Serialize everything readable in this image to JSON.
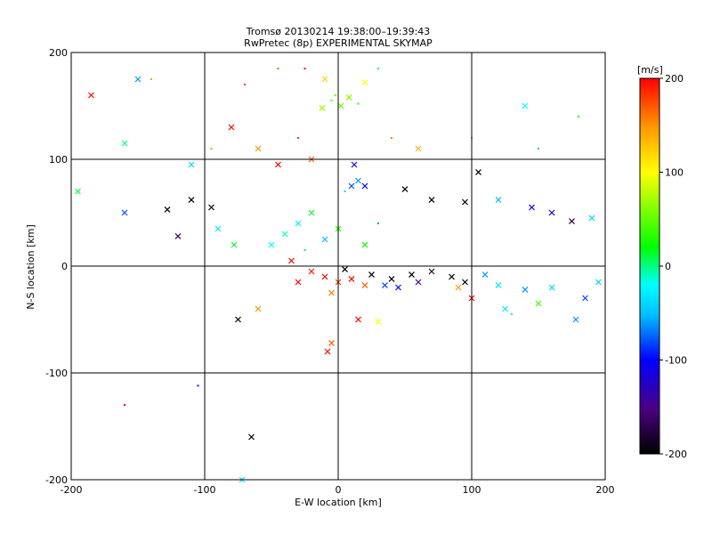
{
  "chart_data": {
    "type": "scatter",
    "title": "Tromsø 20130214 19:38:00–19:39:43",
    "subtitle": "RwPretec (8p) EXPERIMENTAL SKYMAP",
    "xlabel": "E-W location [km]",
    "ylabel": "N-S location [km]",
    "xlim": [
      -200,
      200
    ],
    "ylim": [
      -200,
      200
    ],
    "x_ticks": [
      -200,
      -100,
      0,
      100,
      200
    ],
    "y_ticks": [
      -200,
      -100,
      0,
      100,
      200
    ],
    "x_tick_labels": [
      "-200",
      "-100",
      "0",
      "100",
      "200"
    ],
    "y_tick_labels": [
      "-200",
      "-100",
      "0",
      "100",
      "200"
    ],
    "grid": true,
    "colorbar": {
      "label": "[m/s]",
      "min": -200,
      "max": 200,
      "ticks": [
        200,
        100,
        0,
        -100,
        -200
      ],
      "tick_labels": [
        "200",
        "100",
        "0",
        "-100",
        "-200"
      ],
      "colormap": [
        "#000000",
        "#4b0082",
        "#0000ff",
        "#00bfff",
        "#00ffff",
        "#00ff00",
        "#ffff00",
        "#ff9900",
        "#ff0000"
      ]
    },
    "markers": [
      "small dot",
      "cross"
    ],
    "points": [
      {
        "x": 2,
        "y": 150,
        "v": 50,
        "m": "x"
      },
      {
        "x": -5,
        "y": 155,
        "v": 40,
        "m": "."
      },
      {
        "x": 8,
        "y": 158,
        "v": 60,
        "m": "x"
      },
      {
        "x": -12,
        "y": 148,
        "v": 70,
        "m": "x"
      },
      {
        "x": 15,
        "y": 152,
        "v": 30,
        "m": "."
      },
      {
        "x": -2,
        "y": 160,
        "v": 55,
        "m": "."
      },
      {
        "x": -60,
        "y": 110,
        "v": 150,
        "m": "x"
      },
      {
        "x": -30,
        "y": 120,
        "v": 180,
        "m": "."
      },
      {
        "x": -45,
        "y": 95,
        "v": 200,
        "m": "x"
      },
      {
        "x": -20,
        "y": 100,
        "v": 170,
        "m": "x"
      },
      {
        "x": 40,
        "y": 120,
        "v": 160,
        "m": "."
      },
      {
        "x": 60,
        "y": 110,
        "v": 140,
        "m": "x"
      },
      {
        "x": 100,
        "y": 120,
        "v": 40,
        "m": "."
      },
      {
        "x": 140,
        "y": 150,
        "v": -20,
        "m": "x"
      },
      {
        "x": 150,
        "y": 110,
        "v": -50,
        "m": "."
      },
      {
        "x": 180,
        "y": 140,
        "v": 20,
        "m": "."
      },
      {
        "x": -185,
        "y": 160,
        "v": 200,
        "m": "x"
      },
      {
        "x": -195,
        "y": 70,
        "v": 10,
        "m": "x"
      },
      {
        "x": -160,
        "y": 115,
        "v": 0,
        "m": "x"
      },
      {
        "x": -150,
        "y": 175,
        "v": -60,
        "m": "x"
      },
      {
        "x": -160,
        "y": 50,
        "v": -80,
        "m": "x"
      },
      {
        "x": -128,
        "y": 53,
        "v": -200,
        "m": "x"
      },
      {
        "x": -110,
        "y": 62,
        "v": -200,
        "m": "x"
      },
      {
        "x": -95,
        "y": 55,
        "v": -200,
        "m": "x"
      },
      {
        "x": -120,
        "y": 28,
        "v": -160,
        "m": "x"
      },
      {
        "x": -90,
        "y": 35,
        "v": -30,
        "m": "x"
      },
      {
        "x": -78,
        "y": 20,
        "v": 10,
        "m": "x"
      },
      {
        "x": 10,
        "y": 75,
        "v": -80,
        "m": "x"
      },
      {
        "x": 15,
        "y": 80,
        "v": -60,
        "m": "x"
      },
      {
        "x": 5,
        "y": 70,
        "v": -40,
        "m": "."
      },
      {
        "x": 20,
        "y": 75,
        "v": -100,
        "m": "x"
      },
      {
        "x": 12,
        "y": 95,
        "v": -120,
        "m": "x"
      },
      {
        "x": 50,
        "y": 72,
        "v": -200,
        "m": "x"
      },
      {
        "x": 70,
        "y": 62,
        "v": -200,
        "m": "x"
      },
      {
        "x": 95,
        "y": 60,
        "v": -200,
        "m": "x"
      },
      {
        "x": 105,
        "y": 88,
        "v": -200,
        "m": "x"
      },
      {
        "x": 120,
        "y": 62,
        "v": -50,
        "m": "x"
      },
      {
        "x": 145,
        "y": 55,
        "v": -100,
        "m": "x"
      },
      {
        "x": 160,
        "y": 50,
        "v": -120,
        "m": "x"
      },
      {
        "x": 175,
        "y": 42,
        "v": -170,
        "m": "x"
      },
      {
        "x": 190,
        "y": 45,
        "v": -40,
        "m": "x"
      },
      {
        "x": -40,
        "y": 30,
        "v": -10,
        "m": "x"
      },
      {
        "x": -30,
        "y": 40,
        "v": -30,
        "m": "x"
      },
      {
        "x": -20,
        "y": 50,
        "v": 10,
        "m": "x"
      },
      {
        "x": -10,
        "y": 25,
        "v": -50,
        "m": "x"
      },
      {
        "x": 0,
        "y": 35,
        "v": 30,
        "m": "x"
      },
      {
        "x": -50,
        "y": 20,
        "v": -20,
        "m": "x"
      },
      {
        "x": 20,
        "y": 20,
        "v": 20,
        "m": "x"
      },
      {
        "x": 30,
        "y": 40,
        "v": -60,
        "m": "."
      },
      {
        "x": -25,
        "y": 15,
        "v": -40,
        "m": "."
      },
      {
        "x": -35,
        "y": 5,
        "v": 200,
        "m": "x"
      },
      {
        "x": -20,
        "y": -5,
        "v": 190,
        "m": "x"
      },
      {
        "x": -10,
        "y": -10,
        "v": 200,
        "m": "x"
      },
      {
        "x": 0,
        "y": -15,
        "v": 180,
        "m": "x"
      },
      {
        "x": 10,
        "y": -12,
        "v": 200,
        "m": "x"
      },
      {
        "x": 20,
        "y": -18,
        "v": 170,
        "m": "x"
      },
      {
        "x": -5,
        "y": -25,
        "v": 160,
        "m": "x"
      },
      {
        "x": -30,
        "y": -15,
        "v": 200,
        "m": "x"
      },
      {
        "x": 5,
        "y": -3,
        "v": -200,
        "m": "x"
      },
      {
        "x": 25,
        "y": -8,
        "v": -200,
        "m": "x"
      },
      {
        "x": 40,
        "y": -12,
        "v": -200,
        "m": "x"
      },
      {
        "x": 55,
        "y": -8,
        "v": -200,
        "m": "x"
      },
      {
        "x": 70,
        "y": -5,
        "v": -180,
        "m": "x"
      },
      {
        "x": 85,
        "y": -10,
        "v": -200,
        "m": "x"
      },
      {
        "x": 45,
        "y": -20,
        "v": -100,
        "m": "x"
      },
      {
        "x": 35,
        "y": -18,
        "v": -80,
        "m": "x"
      },
      {
        "x": 60,
        "y": -15,
        "v": -150,
        "m": "x"
      },
      {
        "x": 95,
        "y": -15,
        "v": -200,
        "m": "x"
      },
      {
        "x": 110,
        "y": -8,
        "v": -60,
        "m": "x"
      },
      {
        "x": 120,
        "y": -18,
        "v": -30,
        "m": "x"
      },
      {
        "x": 140,
        "y": -22,
        "v": -60,
        "m": "x"
      },
      {
        "x": 160,
        "y": -20,
        "v": -40,
        "m": "x"
      },
      {
        "x": 185,
        "y": -30,
        "v": -80,
        "m": "x"
      },
      {
        "x": 150,
        "y": -35,
        "v": 40,
        "m": "x"
      },
      {
        "x": 125,
        "y": -40,
        "v": -30,
        "m": "x"
      },
      {
        "x": 100,
        "y": -30,
        "v": 200,
        "m": "x"
      },
      {
        "x": 90,
        "y": -20,
        "v": 150,
        "m": "x"
      },
      {
        "x": 130,
        "y": -45,
        "v": 0,
        "m": "."
      },
      {
        "x": 195,
        "y": -15,
        "v": -40,
        "m": "x"
      },
      {
        "x": 178,
        "y": -50,
        "v": -60,
        "m": "x"
      },
      {
        "x": -75,
        "y": -50,
        "v": -200,
        "m": "x"
      },
      {
        "x": -60,
        "y": -40,
        "v": 150,
        "m": "x"
      },
      {
        "x": -5,
        "y": -72,
        "v": 170,
        "m": "x"
      },
      {
        "x": -8,
        "y": -80,
        "v": 200,
        "m": "x"
      },
      {
        "x": 15,
        "y": -50,
        "v": 200,
        "m": "x"
      },
      {
        "x": 30,
        "y": -52,
        "v": 100,
        "m": "x"
      },
      {
        "x": -65,
        "y": -160,
        "v": -200,
        "m": "x"
      },
      {
        "x": -72,
        "y": -200,
        "v": -30,
        "m": "x"
      },
      {
        "x": -160,
        "y": -130,
        "v": 200,
        "m": "."
      },
      {
        "x": -105,
        "y": -112,
        "v": -100,
        "m": "."
      },
      {
        "x": -80,
        "y": 130,
        "v": 200,
        "m": "x"
      },
      {
        "x": -70,
        "y": 170,
        "v": 180,
        "m": "."
      },
      {
        "x": -10,
        "y": 175,
        "v": 120,
        "m": "x"
      },
      {
        "x": 20,
        "y": 172,
        "v": 100,
        "m": "x"
      },
      {
        "x": -25,
        "y": 185,
        "v": 200,
        "m": "."
      },
      {
        "x": 30,
        "y": 185,
        "v": -40,
        "m": "."
      },
      {
        "x": -140,
        "y": 175,
        "v": 150,
        "m": "."
      },
      {
        "x": -110,
        "y": 95,
        "v": -40,
        "m": "x"
      },
      {
        "x": -95,
        "y": 110,
        "v": 150,
        "m": "."
      },
      {
        "x": -45,
        "y": 185,
        "v": 170,
        "m": "."
      }
    ]
  }
}
